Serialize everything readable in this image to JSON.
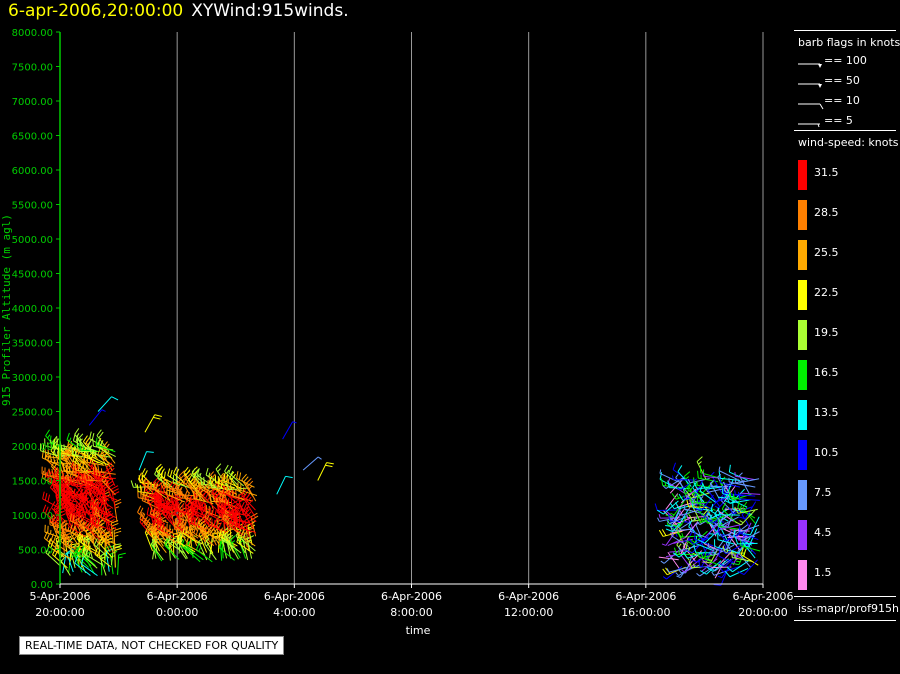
{
  "header": {
    "timestamp": "6-apr-2006,20:00:00",
    "product": "XYWind:915winds."
  },
  "legend": {
    "barb_title": "barb flags in knots",
    "barbs": [
      {
        "label": "== 100",
        "kind": "flag"
      },
      {
        "label": "== 50",
        "kind": "flag"
      },
      {
        "label": "== 10",
        "kind": "full"
      },
      {
        "label": "== 5",
        "kind": "half"
      }
    ],
    "speed_title": "wind-speed: knots",
    "speed_scale": [
      {
        "label": "31.5",
        "color": "#ff0000"
      },
      {
        "label": "28.5",
        "color": "#ff8000"
      },
      {
        "label": "25.5",
        "color": "#ffaa00"
      },
      {
        "label": "22.5",
        "color": "#ffff00"
      },
      {
        "label": "19.5",
        "color": "#aaff33"
      },
      {
        "label": "16.5",
        "color": "#00ee00"
      },
      {
        "label": "13.5",
        "color": "#00ffff"
      },
      {
        "label": "10.5",
        "color": "#0000ff"
      },
      {
        "label": "7.5",
        "color": "#6699ff"
      },
      {
        "label": "4.5",
        "color": "#9933ff"
      },
      {
        "label": "1.5",
        "color": "#ff88ee"
      }
    ],
    "source": "iss-mapr/prof915h"
  },
  "footer": {
    "quality_note": "REAL-TIME DATA, NOT CHECKED FOR QUALITY"
  },
  "chart_data": {
    "type": "scatter",
    "title": "XYWind:915winds.",
    "ylabel": "915 Profiler Altitude (m agl)",
    "xlabel": "time",
    "ylim": [
      0,
      8000
    ],
    "xlim_hours": [
      0,
      24
    ],
    "yticks": [
      0,
      500,
      1000,
      1500,
      2000,
      2500,
      3000,
      3500,
      4000,
      4500,
      5000,
      5500,
      6000,
      6500,
      7000,
      7500,
      8000
    ],
    "ytick_labels": [
      "0.00",
      "500.00",
      "1000.00",
      "1500.00",
      "2000.00",
      "2500.00",
      "3000.00",
      "3500.00",
      "4000.00",
      "4500.00",
      "5000.00",
      "5500.00",
      "6000.00",
      "6500.00",
      "7000.00",
      "7500.00",
      "8000.00"
    ],
    "xticks": [
      {
        "date": "5-Apr-2006",
        "time": "20:00:00"
      },
      {
        "date": "6-Apr-2006",
        "time": "0:00:00"
      },
      {
        "date": "6-Apr-2006",
        "time": "4:00:00"
      },
      {
        "date": "6-Apr-2006",
        "time": "8:00:00"
      },
      {
        "date": "6-Apr-2006",
        "time": "12:00:00"
      },
      {
        "date": "6-Apr-2006",
        "time": "16:00:00"
      },
      {
        "date": "6-Apr-2006",
        "time": "20:00:00"
      }
    ],
    "grid": "vertical",
    "colors": {
      "axis": "#00cc00",
      "grid": "#999999"
    },
    "barb_groups": [
      {
        "t_start": 0.0,
        "t_end": 2.0,
        "alt_min": 150,
        "alt_max": 2000,
        "speed_min": 8,
        "speed_max": 33
      },
      {
        "t_start": 3.2,
        "t_end": 6.8,
        "alt_min": 350,
        "alt_max": 1500,
        "speed_min": 10,
        "speed_max": 32
      },
      {
        "t_start": 21.1,
        "t_end": 23.9,
        "alt_min": 250,
        "alt_max": 1600,
        "speed_min": 1,
        "speed_max": 19
      }
    ],
    "sparse_barbs": [
      {
        "t": 1.3,
        "alt": 2500,
        "speed": 14
      },
      {
        "t": 1.0,
        "alt": 2300,
        "speed": 9
      },
      {
        "t": 2.9,
        "alt": 2200,
        "speed": 22
      },
      {
        "t": 2.7,
        "alt": 1650,
        "speed": 13
      },
      {
        "t": 7.6,
        "alt": 2100,
        "speed": 9
      },
      {
        "t": 8.3,
        "alt": 1650,
        "speed": 7
      },
      {
        "t": 8.8,
        "alt": 1500,
        "speed": 22
      },
      {
        "t": 7.4,
        "alt": 1300,
        "speed": 13
      }
    ]
  }
}
